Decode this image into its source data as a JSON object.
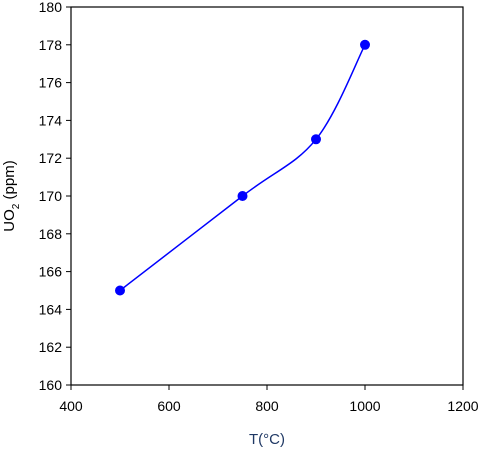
{
  "chart_data": {
    "type": "scatter",
    "xlabel": "T(°C)",
    "ylabel_main": "UO",
    "ylabel_sub": "2",
    "ylabel_tail": " (ppm)",
    "xlim": [
      400,
      1200
    ],
    "ylim": [
      160,
      180
    ],
    "xticks": [
      400,
      600,
      800,
      1000,
      1200
    ],
    "yticks": [
      160,
      162,
      164,
      166,
      168,
      170,
      172,
      174,
      176,
      178,
      180
    ],
    "grid": false,
    "line": "smooth",
    "series": [
      {
        "x": [
          500,
          750,
          900,
          1000
        ],
        "y": [
          165,
          170,
          173,
          178
        ]
      }
    ],
    "colors": {
      "series": "#0000ff",
      "xlabel": "#1f3864",
      "axis": "#000000"
    }
  }
}
